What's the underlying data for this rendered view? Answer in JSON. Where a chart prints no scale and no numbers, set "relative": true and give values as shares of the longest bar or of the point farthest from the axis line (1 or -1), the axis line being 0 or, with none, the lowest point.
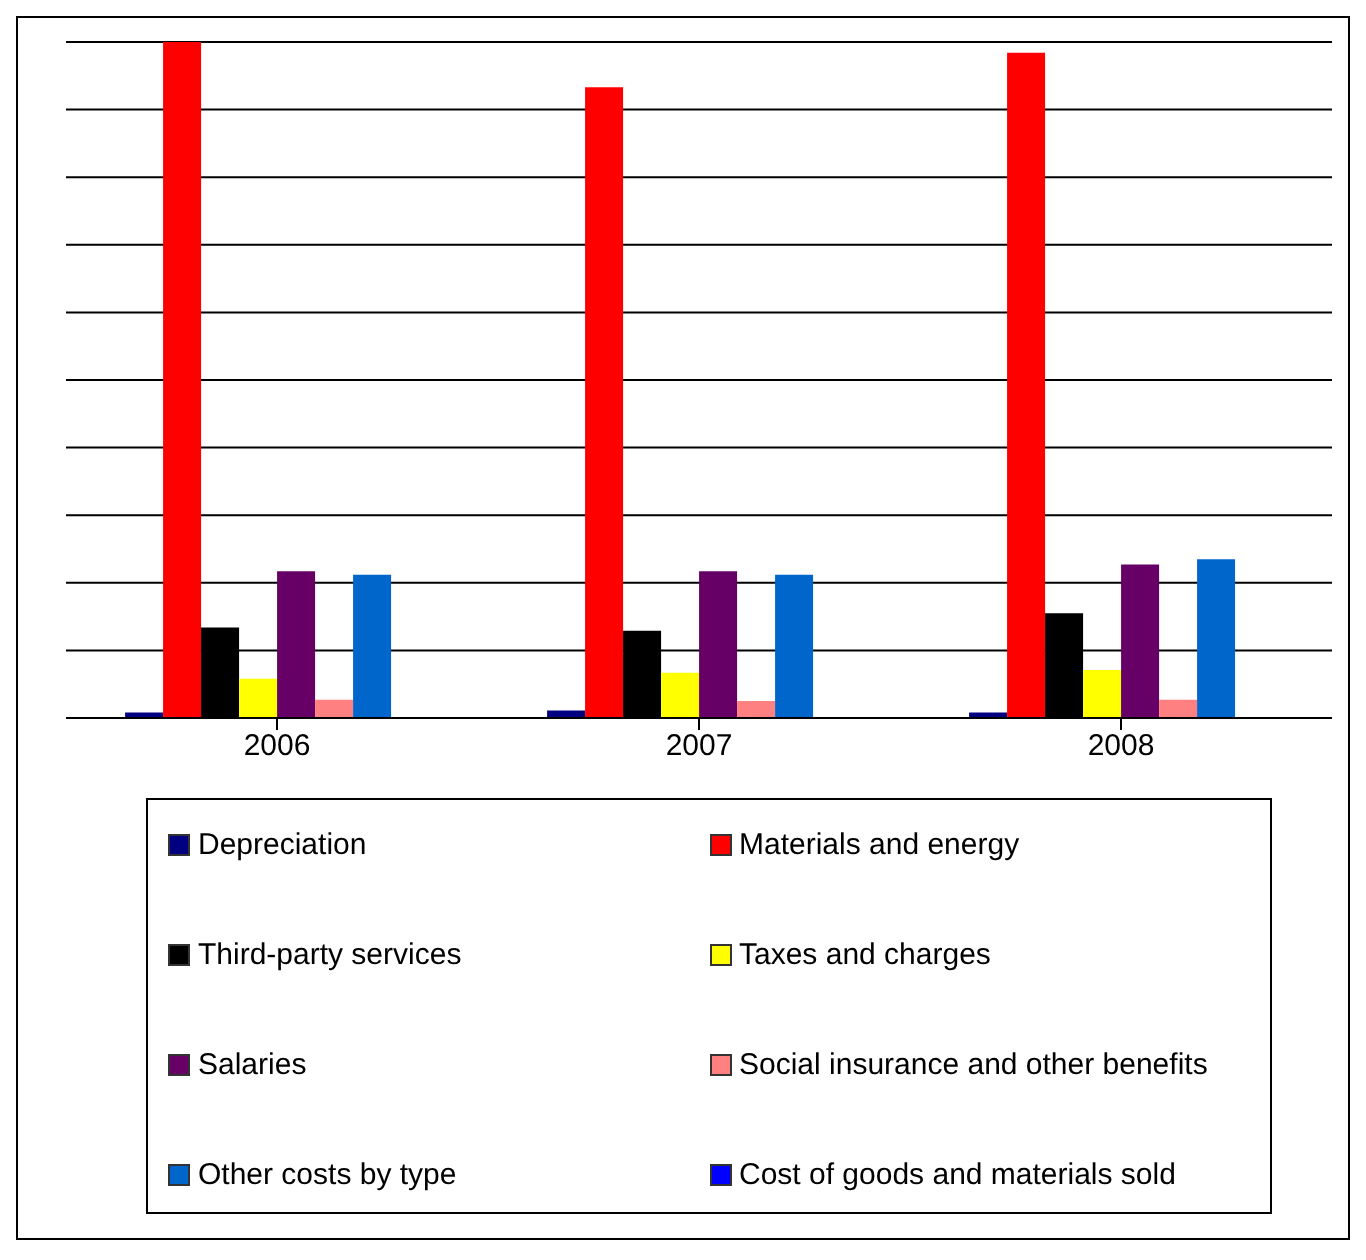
{
  "chart_data": {
    "type": "bar",
    "relative": true,
    "categories": [
      "2006",
      "2007",
      "2008"
    ],
    "series": [
      {
        "name": "Depreciation",
        "color": "#000080",
        "values": [
          0.008,
          0.011,
          0.008
        ]
      },
      {
        "name": "Materials and energy",
        "color": "#ff0000",
        "values": [
          1,
          0.933,
          0.984
        ]
      },
      {
        "name": "Third-party services",
        "color": "#000000",
        "values": [
          0.134,
          0.129,
          0.155
        ]
      },
      {
        "name": "Taxes and charges",
        "color": "#ffff00",
        "values": [
          0.058,
          0.067,
          0.071
        ]
      },
      {
        "name": "Salaries",
        "color": "#660066",
        "values": [
          0.217,
          0.217,
          0.227
        ]
      },
      {
        "name": "Social insurance and other benefits",
        "color": "#ff8080",
        "values": [
          0.027,
          0.025,
          0.027
        ]
      },
      {
        "name": "Other costs by type",
        "color": "#0066cc",
        "values": [
          0.212,
          0.212,
          0.235
        ]
      },
      {
        "name": "Cost of goods and materials sold",
        "color": "#0000ff",
        "values": [
          0,
          0,
          0
        ]
      }
    ],
    "grid": "y",
    "legend": "bottom"
  }
}
